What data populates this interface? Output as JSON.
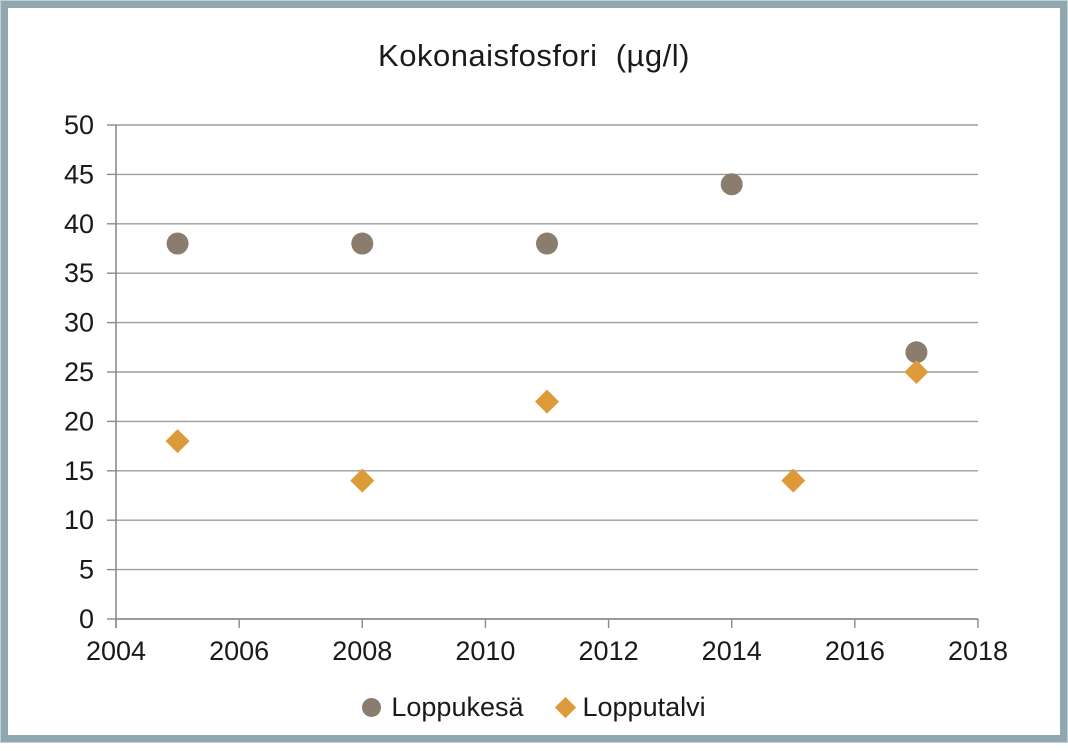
{
  "frame": {
    "border_color": "#91a7af",
    "background": "#ffffff"
  },
  "chart_data": {
    "type": "scatter",
    "title": "Kokonaisfosfori  (µg/l)",
    "xlabel": "",
    "ylabel": "",
    "xlim": [
      2004,
      2018
    ],
    "ylim": [
      0,
      50
    ],
    "x_ticks": [
      2004,
      2006,
      2008,
      2010,
      2012,
      2014,
      2016,
      2018
    ],
    "y_ticks": [
      0,
      5,
      10,
      15,
      20,
      25,
      30,
      35,
      40,
      45,
      50
    ],
    "grid": "horizontal",
    "gridline_color": "#9c9c9c",
    "axis_color": "#8a8a8a",
    "text_color": "#1a1a1a",
    "legend_position": "bottom",
    "series": [
      {
        "name": "Loppukesä",
        "marker": "circle",
        "color": "#8a7d6e",
        "points": [
          {
            "x": 2005,
            "y": 38
          },
          {
            "x": 2008,
            "y": 38
          },
          {
            "x": 2011,
            "y": 38
          },
          {
            "x": 2014,
            "y": 44
          },
          {
            "x": 2017,
            "y": 27
          }
        ]
      },
      {
        "name": "Lopputalvi",
        "marker": "diamond",
        "color": "#dd9a38",
        "points": [
          {
            "x": 2005,
            "y": 18
          },
          {
            "x": 2008,
            "y": 14
          },
          {
            "x": 2011,
            "y": 22
          },
          {
            "x": 2015,
            "y": 14
          },
          {
            "x": 2017,
            "y": 25
          }
        ]
      }
    ]
  }
}
